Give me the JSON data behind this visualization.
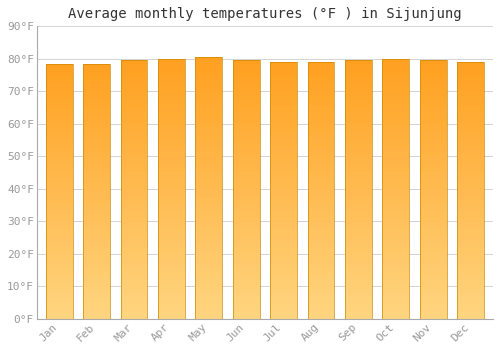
{
  "title": "Average monthly temperatures (°F ) in Sijunjung",
  "months": [
    "Jan",
    "Feb",
    "Mar",
    "Apr",
    "May",
    "Jun",
    "Jul",
    "Aug",
    "Sep",
    "Oct",
    "Nov",
    "Dec"
  ],
  "values": [
    78.5,
    78.5,
    79.5,
    80.0,
    80.5,
    79.5,
    79.0,
    79.0,
    79.5,
    80.0,
    79.5,
    79.0
  ],
  "ylim": [
    0,
    90
  ],
  "yticks": [
    0,
    10,
    20,
    30,
    40,
    50,
    60,
    70,
    80,
    90
  ],
  "ytick_labels": [
    "0°F",
    "10°F",
    "20°F",
    "30°F",
    "40°F",
    "50°F",
    "60°F",
    "70°F",
    "80°F",
    "90°F"
  ],
  "bar_color_bottom": "#FFD580",
  "bar_color_top": "#FFA020",
  "bar_edge_color": "#CC8800",
  "background_color": "#FFFFFF",
  "plot_bg_color": "#FFFFFF",
  "grid_color": "#CCCCCC",
  "title_fontsize": 10,
  "tick_fontsize": 8,
  "tick_color": "#999999",
  "spine_color": "#AAAAAA"
}
